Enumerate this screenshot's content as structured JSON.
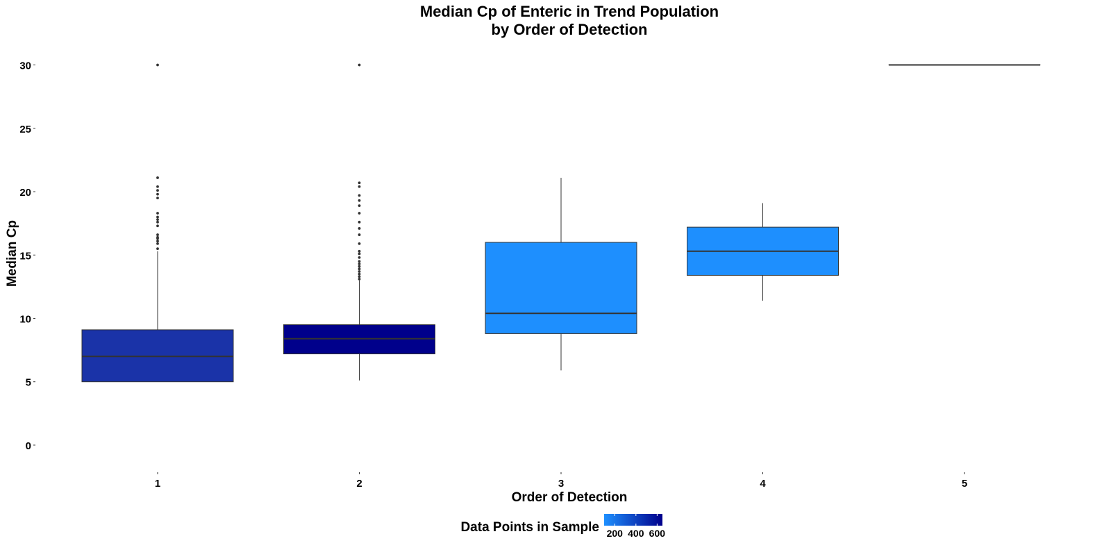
{
  "chart_data": {
    "type": "box",
    "title_lines": [
      "Median Cp of Enteric in Trend Population",
      "by Order of Detection"
    ],
    "xlabel": "Order of Detection",
    "ylabel": "Median Cp",
    "ylim": [
      -1.7,
      31.4
    ],
    "yticks": [
      0,
      5,
      10,
      15,
      20,
      25,
      30
    ],
    "categories": [
      "1",
      "2",
      "3",
      "4",
      "5"
    ],
    "grid": false,
    "legend": {
      "title": "Data Points in Sample",
      "position": "bottom",
      "range": [
        100,
        650
      ],
      "ticks": [
        200,
        400,
        600
      ],
      "low_color": "#1E90FF",
      "high_color": "#00008B"
    },
    "boxes": [
      {
        "category": "1",
        "whisker_low": 5.0,
        "q1": 5.0,
        "median": 7.0,
        "q3": 9.1,
        "whisker_high": 15.3,
        "outliers": [
          15.5,
          15.9,
          16.1,
          16.3,
          16.4,
          16.6,
          17.3,
          17.6,
          17.8,
          18.0,
          18.3,
          19.5,
          19.8,
          20.1,
          20.4,
          21.1,
          30.0
        ],
        "count": 523,
        "fill": "#1A33A8"
      },
      {
        "category": "2",
        "whisker_low": 5.1,
        "q1": 7.2,
        "median": 8.4,
        "q3": 9.5,
        "whisker_high": 13.0,
        "outliers": [
          13.1,
          13.3,
          13.5,
          13.7,
          13.9,
          14.1,
          14.3,
          14.5,
          14.8,
          15.1,
          15.3,
          15.9,
          16.6,
          17.1,
          17.6,
          18.3,
          18.9,
          19.3,
          19.7,
          20.4,
          20.7,
          30.0
        ],
        "count": 640,
        "fill": "#00008B"
      },
      {
        "category": "3",
        "whisker_low": 5.9,
        "q1": 8.8,
        "median": 10.4,
        "q3": 16.0,
        "whisker_high": 21.1,
        "outliers": [],
        "count": 110,
        "fill": "#1E8FFE"
      },
      {
        "category": "4",
        "whisker_low": 11.4,
        "q1": 13.4,
        "median": 15.3,
        "q3": 17.2,
        "whisker_high": 19.1,
        "outliers": [],
        "count": 110,
        "fill": "#1E8FFE"
      },
      {
        "category": "5",
        "whisker_low": 30.0,
        "q1": 30.0,
        "median": 30.0,
        "q3": 30.0,
        "whisker_high": 30.0,
        "outliers": [],
        "count": 1,
        "fill": "#1E90FF"
      }
    ]
  }
}
